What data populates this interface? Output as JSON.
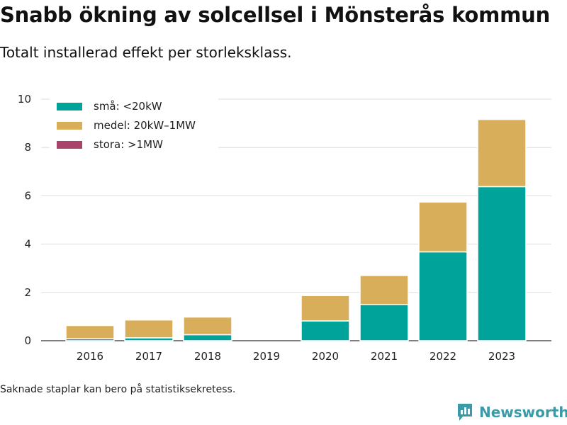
{
  "title": "Snabb ökning av solcellsel i Mönsterås kommun",
  "subtitle": "Totalt installerad effekt per storleksklass.",
  "footnote": "Saknade staplar kan bero på statistiksekretess.",
  "brand": {
    "name": "Newsworthy",
    "icon": "newsworthy-logo-icon",
    "color": "#3a9aa6"
  },
  "legend": [
    {
      "label": "små: <20kW",
      "color": "#00a39a"
    },
    {
      "label": "medel: 20kW–1MW",
      "color": "#d9ae5b"
    },
    {
      "label": "stora: >1MW",
      "color": "#a8436b"
    }
  ],
  "chart_data": {
    "type": "bar",
    "stacked": true,
    "categories": [
      "2016",
      "2017",
      "2018",
      "2019",
      "2020",
      "2021",
      "2022",
      "2023"
    ],
    "series": [
      {
        "name": "små: <20kW",
        "color": "#00a39a",
        "values": [
          0.08,
          0.12,
          0.25,
          0,
          0.82,
          1.5,
          3.68,
          6.38
        ]
      },
      {
        "name": "medel: 20kW–1MW",
        "color": "#d9ae5b",
        "values": [
          0.55,
          0.74,
          0.73,
          0,
          1.05,
          1.2,
          2.06,
          2.78
        ]
      },
      {
        "name": "stora: >1MW",
        "color": "#a8436b",
        "values": [
          0,
          0,
          0,
          0,
          0,
          0,
          0,
          0
        ]
      }
    ],
    "yticks": [
      0,
      2,
      4,
      6,
      8,
      10
    ],
    "ylim": [
      0,
      10
    ],
    "grid": true,
    "legend_position": "top-left"
  }
}
